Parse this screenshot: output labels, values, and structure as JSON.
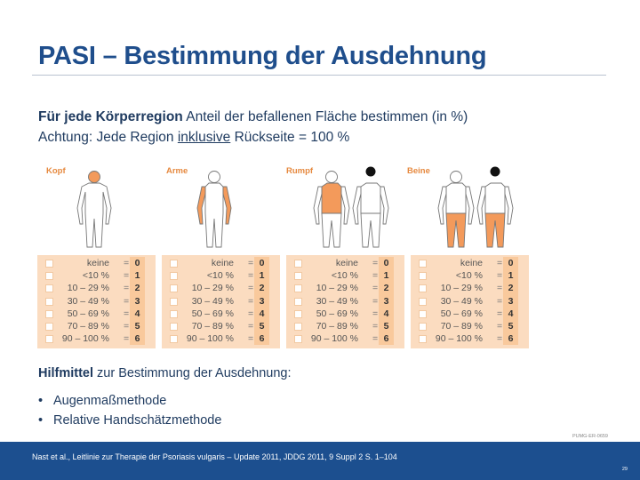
{
  "title": "PASI – Bestimmung der Ausdehnung",
  "intro": {
    "line1_bold": "Für jede Körperregion",
    "line1_rest": " Anteil der befallenen Fläche bestimmen (in %)",
    "line2_a": "Achtung: Jede Region ",
    "line2_u": "inklusive",
    "line2_b": " Rückseite = 100 %"
  },
  "figure": {
    "regions": [
      {
        "label": "Kopf"
      },
      {
        "label": "Arme"
      },
      {
        "label": "Rumpf"
      },
      {
        "label": "Beine"
      }
    ],
    "highlight_color": "#f39a5b",
    "rows": [
      {
        "label": "keine",
        "eq": "=",
        "score": "0"
      },
      {
        "label": "<10 %",
        "eq": "=",
        "score": "1"
      },
      {
        "label": "10 – 29 %",
        "eq": "=",
        "score": "2"
      },
      {
        "label": "30 – 49 %",
        "eq": "=",
        "score": "3"
      },
      {
        "label": "50 – 69 %",
        "eq": "=",
        "score": "4"
      },
      {
        "label": "70 – 89 %",
        "eq": "=",
        "score": "5"
      },
      {
        "label": "90 – 100 %",
        "eq": "=",
        "score": "6"
      }
    ]
  },
  "subtitle_bold": "Hilfmittel",
  "subtitle_rest": " zur Bestimmung der Ausdehnung:",
  "bullets": [
    "Augenmaßmethode",
    "Relative Handschätzmethode"
  ],
  "code": "PUMG-ER-0659",
  "reference": "Nast et al., Leitlinie zur Therapie der Psoriasis vulgaris – Update 2011, JDDG 2011, 9 Suppl 2 S. 1–104",
  "page_number": "29"
}
